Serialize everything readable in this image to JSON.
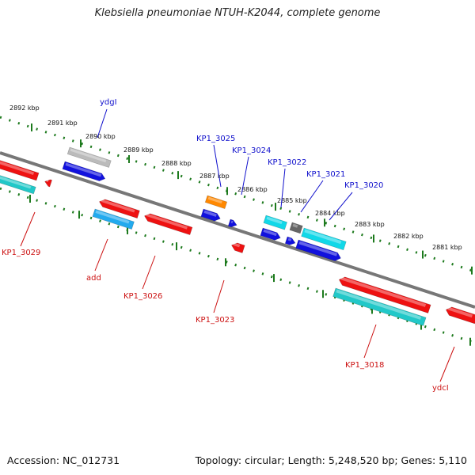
{
  "title": "Klebsiella pneumoniae NTUH-K2044, complete genome",
  "footer": {
    "accession": "Accession: NC_012731",
    "summary": "Topology: circular; Length: 5,248,520 bp; Genes: 5,110"
  },
  "colors": {
    "backbone": "#777777",
    "tick": "#1d7a1d",
    "forward_label": "#1010cc",
    "reverse_label": "#cc1111",
    "blue": "#1111dd",
    "red": "#ee1111",
    "cyan": "#11d8e8",
    "teal": "#22c8c8",
    "sky": "#22aaee",
    "orange": "#ff8800",
    "grey": "#bbbbbb",
    "darkgrey": "#666666"
  },
  "kbp_ticks": [
    "2892 kbp",
    "2891 kbp",
    "2890 kbp",
    "2889 kbp",
    "2888 kbp",
    "2887 kbp",
    "2886 kbp",
    "2885 kbp",
    "2884 kbp",
    "2883 kbp",
    "2882 kbp",
    "2881 kbp"
  ],
  "gene_labels": {
    "forward": [
      "ydgI",
      "KP1_3025",
      "KP1_3024",
      "KP1_3022",
      "KP1_3021",
      "KP1_3020"
    ],
    "reverse": [
      "KP1_3029",
      "add",
      "KP1_3026",
      "KP1_3023",
      "KP1_3018",
      "ydcI"
    ]
  },
  "features": [
    {
      "name": "ydgI-grey",
      "track": "fwd_outer",
      "color": "grey"
    },
    {
      "name": "ydgI",
      "track": "fwd_inner",
      "color": "blue"
    },
    {
      "name": "KP1_3025",
      "track": "fwd_outer",
      "color": "orange"
    },
    {
      "name": "KP1_3025b",
      "track": "fwd_inner",
      "color": "blue"
    },
    {
      "name": "KP1_3024",
      "track": "fwd_inner",
      "color": "blue"
    },
    {
      "name": "KP1_3024b",
      "track": "fwd_inner",
      "color": "blue"
    },
    {
      "name": "KP1_3022",
      "track": "fwd_outer",
      "color": "cyan"
    },
    {
      "name": "KP1_3022b",
      "track": "fwd_inner",
      "color": "blue"
    },
    {
      "name": "KP1_3021",
      "track": "fwd_outer",
      "color": "darkgrey"
    },
    {
      "name": "KP1_3020",
      "track": "fwd_outer",
      "color": "cyan"
    },
    {
      "name": "KP1_3020b",
      "track": "fwd_inner",
      "color": "blue"
    },
    {
      "name": "KP1_3029",
      "track": "rev",
      "color": "red"
    },
    {
      "name": "KP1_3029b",
      "track": "rev_inner",
      "color": "teal"
    },
    {
      "name": "add",
      "track": "rev",
      "color": "red"
    },
    {
      "name": "add-b",
      "track": "rev_inner",
      "color": "sky"
    },
    {
      "name": "KP1_3026",
      "track": "rev",
      "color": "red"
    },
    {
      "name": "KP1_3023",
      "track": "rev_inner",
      "color": "red"
    },
    {
      "name": "KP1_3018",
      "track": "rev",
      "color": "red"
    },
    {
      "name": "KP1_3018b",
      "track": "rev_inner",
      "color": "teal"
    },
    {
      "name": "ydcI",
      "track": "rev",
      "color": "red"
    }
  ]
}
